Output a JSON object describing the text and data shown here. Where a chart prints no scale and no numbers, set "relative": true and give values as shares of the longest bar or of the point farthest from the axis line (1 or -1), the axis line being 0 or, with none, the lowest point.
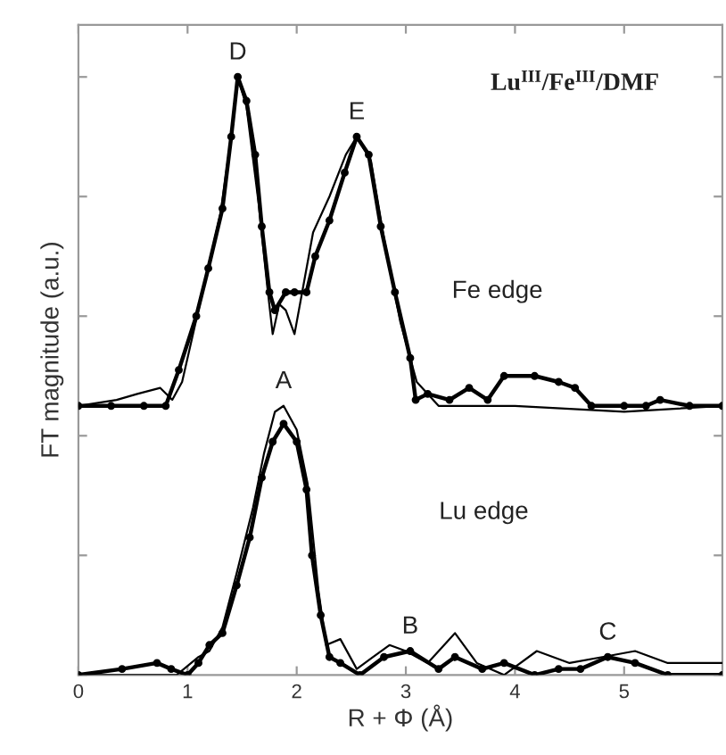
{
  "chart_data": {
    "type": "line",
    "relative": true,
    "xlabel": "R + Φ (Å)",
    "ylabel": "FT magnitude (a.u.)",
    "xlim": [
      0,
      5.9
    ],
    "xticks": [
      0,
      1,
      2,
      3,
      4,
      5
    ],
    "grid": false,
    "tick_labels": "x",
    "series": [
      {
        "color": "#000000",
        "marker": "circle",
        "x": [
          0,
          0.3,
          0.6,
          0.8,
          0.92,
          1.08,
          1.19,
          1.32,
          1.4,
          1.46,
          1.54,
          1.62,
          1.68,
          1.75,
          1.8,
          1.9,
          1.98,
          2.09,
          2.17,
          2.3,
          2.44,
          2.55,
          2.66,
          2.77,
          2.9,
          3.04,
          3.09,
          3.2,
          3.4,
          3.58,
          3.75,
          3.9,
          4.18,
          4.4,
          4.55,
          4.7,
          5.0,
          5.2,
          5.33,
          5.6,
          5.9
        ],
        "values": [
          0.45,
          0.45,
          0.45,
          0.45,
          0.51,
          0.6,
          0.68,
          0.78,
          0.9,
          1.0,
          0.96,
          0.87,
          0.75,
          0.64,
          0.61,
          0.64,
          0.64,
          0.64,
          0.7,
          0.76,
          0.84,
          0.9,
          0.87,
          0.75,
          0.64,
          0.53,
          0.46,
          0.47,
          0.46,
          0.48,
          0.46,
          0.5,
          0.5,
          0.49,
          0.48,
          0.45,
          0.45,
          0.45,
          0.46,
          0.45,
          0.45
        ]
      },
      {
        "color": "#000000",
        "marker": "none",
        "x": [
          0,
          0.35,
          0.54,
          0.75,
          0.86,
          0.95,
          1.1,
          1.3,
          1.4,
          1.46,
          1.54,
          1.65,
          1.73,
          1.78,
          1.84,
          1.9,
          1.98,
          2.06,
          2.15,
          2.3,
          2.45,
          2.55,
          2.68,
          2.8,
          2.95,
          3.1,
          3.3,
          3.6,
          4.0,
          5.0,
          5.9
        ],
        "values": [
          0.45,
          0.46,
          0.47,
          0.48,
          0.46,
          0.49,
          0.61,
          0.77,
          0.9,
          1.0,
          0.95,
          0.79,
          0.65,
          0.57,
          0.62,
          0.61,
          0.57,
          0.65,
          0.74,
          0.8,
          0.87,
          0.9,
          0.86,
          0.73,
          0.59,
          0.49,
          0.45,
          0.45,
          0.45,
          0.44,
          0.45
        ]
      },
      {
        "color": "#000000",
        "marker": "circle",
        "x": [
          0,
          0.4,
          0.72,
          0.85,
          1.0,
          1.1,
          1.2,
          1.32,
          1.45,
          1.57,
          1.68,
          1.78,
          1.88,
          2.0,
          2.09,
          2.14,
          2.22,
          2.3,
          2.4,
          2.58,
          2.8,
          3.04,
          3.3,
          3.45,
          3.7,
          3.9,
          4.18,
          4.4,
          4.6,
          4.85,
          5.1,
          5.4,
          5.9
        ],
        "values": [
          0,
          0.01,
          0.02,
          0.01,
          0,
          0.02,
          0.05,
          0.07,
          0.15,
          0.23,
          0.33,
          0.39,
          0.42,
          0.39,
          0.31,
          0.2,
          0.1,
          0.03,
          0.02,
          0,
          0.03,
          0.04,
          0.01,
          0.03,
          0.01,
          0.02,
          0,
          0.01,
          0.01,
          0.03,
          0.02,
          0,
          0
        ]
      },
      {
        "color": "#000000",
        "marker": "none",
        "x": [
          0,
          0.5,
          0.9,
          1.1,
          1.2,
          1.32,
          1.45,
          1.6,
          1.7,
          1.8,
          1.88,
          2.0,
          2.1,
          2.2,
          2.27,
          2.4,
          2.55,
          2.7,
          2.85,
          3.0,
          3.2,
          3.45,
          3.65,
          3.9,
          4.2,
          4.5,
          4.8,
          5.1,
          5.4,
          5.7,
          5.9
        ],
        "values": [
          0,
          0,
          0,
          0.03,
          0.04,
          0.08,
          0.17,
          0.28,
          0.37,
          0.44,
          0.45,
          0.41,
          0.32,
          0.14,
          0.05,
          0.06,
          0.01,
          0.03,
          0.05,
          0.04,
          0.02,
          0.07,
          0.02,
          0,
          0.04,
          0.02,
          0.03,
          0.04,
          0.02,
          0.02,
          0.02
        ]
      }
    ],
    "annotations": [
      {
        "text": "D",
        "x": 1.46,
        "y": 1.0
      },
      {
        "text": "E",
        "x": 2.55,
        "y": 0.9
      },
      {
        "text": "A",
        "x": 1.88,
        "y": 0.45
      },
      {
        "text": "B",
        "x": 3.04,
        "y": 0.04
      },
      {
        "text": "C",
        "x": 4.85,
        "y": 0.03
      },
      "Lu$^{III}$/Fe$^{III}$/DMF",
      "Fe edge",
      "Lu edge"
    ]
  }
}
